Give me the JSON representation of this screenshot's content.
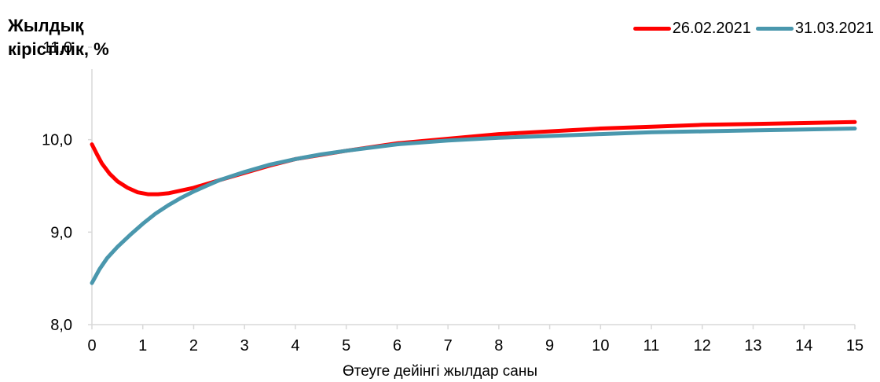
{
  "chart_data": {
    "type": "line",
    "ylabel": "Жылдық\nкірістілік, %",
    "xlabel": "Өтеуге дейінгі жылдар саны",
    "xlim": [
      0,
      15
    ],
    "ylim": [
      8.0,
      11.0
    ],
    "x_ticks": [
      "0",
      "1",
      "2",
      "3",
      "4",
      "5",
      "6",
      "7",
      "8",
      "9",
      "10",
      "11",
      "12",
      "13",
      "14",
      "15"
    ],
    "y_ticks": [
      "8,0",
      "9,0",
      "10,0",
      "11,0"
    ],
    "legend_position": "top-right",
    "grid": false,
    "series": [
      {
        "name": "26.02.2021",
        "color": "#ff0000",
        "points": [
          [
            0,
            9.95
          ],
          [
            0.1,
            9.84
          ],
          [
            0.2,
            9.74
          ],
          [
            0.35,
            9.63
          ],
          [
            0.5,
            9.55
          ],
          [
            0.7,
            9.48
          ],
          [
            0.9,
            9.43
          ],
          [
            1.1,
            9.41
          ],
          [
            1.3,
            9.41
          ],
          [
            1.5,
            9.42
          ],
          [
            1.75,
            9.45
          ],
          [
            2,
            9.48
          ],
          [
            2.5,
            9.56
          ],
          [
            3,
            9.64
          ],
          [
            3.5,
            9.72
          ],
          [
            4,
            9.79
          ],
          [
            5,
            9.88
          ],
          [
            6,
            9.96
          ],
          [
            7,
            10.01
          ],
          [
            8,
            10.06
          ],
          [
            9,
            10.09
          ],
          [
            10,
            10.12
          ],
          [
            11,
            10.14
          ],
          [
            12,
            10.16
          ],
          [
            13,
            10.17
          ],
          [
            14,
            10.18
          ],
          [
            15,
            10.19
          ]
        ]
      },
      {
        "name": "31.03.2021",
        "color": "#4a97ad",
        "points": [
          [
            0,
            8.45
          ],
          [
            0.15,
            8.6
          ],
          [
            0.3,
            8.72
          ],
          [
            0.5,
            8.84
          ],
          [
            0.75,
            8.97
          ],
          [
            1,
            9.09
          ],
          [
            1.25,
            9.2
          ],
          [
            1.5,
            9.29
          ],
          [
            1.75,
            9.37
          ],
          [
            2,
            9.44
          ],
          [
            2.25,
            9.5
          ],
          [
            2.5,
            9.56
          ],
          [
            3,
            9.65
          ],
          [
            3.5,
            9.73
          ],
          [
            4,
            9.79
          ],
          [
            4.5,
            9.84
          ],
          [
            5,
            9.88
          ],
          [
            6,
            9.95
          ],
          [
            7,
            9.99
          ],
          [
            8,
            10.02
          ],
          [
            9,
            10.04
          ],
          [
            10,
            10.06
          ],
          [
            11,
            10.08
          ],
          [
            12,
            10.09
          ],
          [
            13,
            10.1
          ],
          [
            14,
            10.11
          ],
          [
            15,
            10.12
          ]
        ]
      }
    ]
  }
}
